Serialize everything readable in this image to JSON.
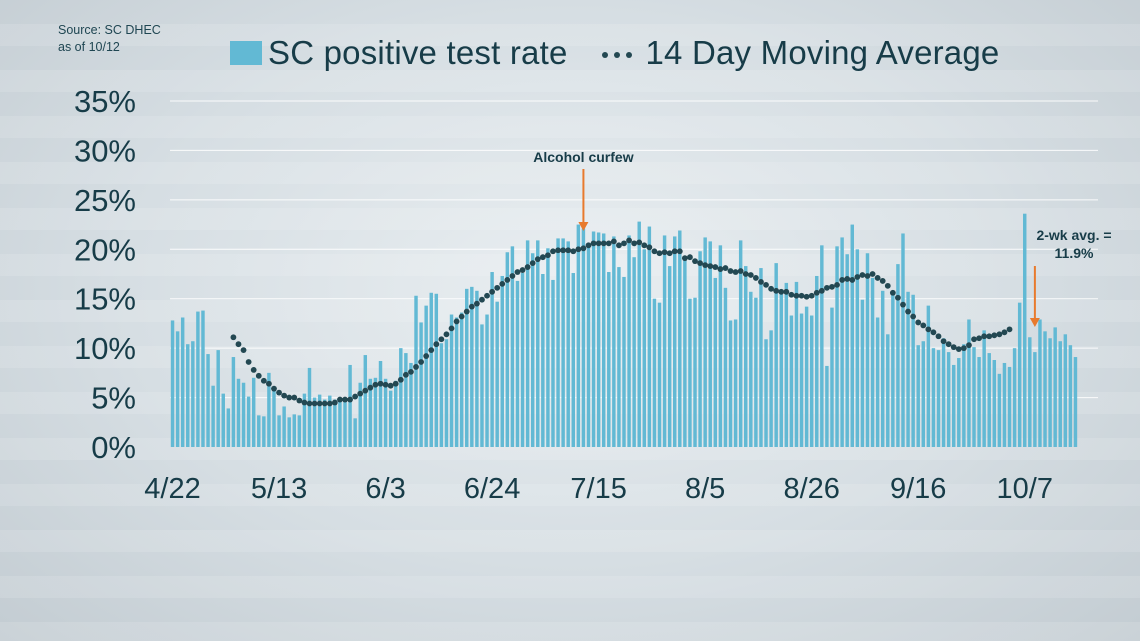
{
  "source": {
    "line1": "Source: SC DHEC",
    "line2": "as of 10/12"
  },
  "chart_data": {
    "type": "bar",
    "start_date": "4/22",
    "x_tick_labels": [
      "4/22",
      "5/13",
      "6/3",
      "6/24",
      "7/15",
      "8/5",
      "8/26",
      "9/16",
      "10/7"
    ],
    "y_tick_labels": [
      "0%",
      "5%",
      "10%",
      "15%",
      "20%",
      "25%",
      "30%",
      "35%"
    ],
    "ylim": [
      0,
      35
    ],
    "grid": true,
    "legend_position": "top",
    "series": [
      {
        "name": "SC positive test rate",
        "color": "#62b9d4",
        "values": [
          12.8,
          11.7,
          13.1,
          10.4,
          10.7,
          13.7,
          13.8,
          9.4,
          6.2,
          9.8,
          5.4,
          3.9,
          9.1,
          6.9,
          6.5,
          5.1,
          7.0,
          3.2,
          3.1,
          7.5,
          5.8,
          3.2,
          4.1,
          3.0,
          3.3,
          3.2,
          5.4,
          8.0,
          5.0,
          5.3,
          4.8,
          5.2,
          4.8,
          5.0,
          4.8,
          8.3,
          2.9,
          6.5,
          9.3,
          6.9,
          7.0,
          8.7,
          6.9,
          5.7,
          6.7,
          10.0,
          9.5,
          8.5,
          15.3,
          12.6,
          14.3,
          15.6,
          15.5,
          10.5,
          10.9,
          13.4,
          13.1,
          13.6,
          16.0,
          16.2,
          15.8,
          12.4,
          13.4,
          17.7,
          14.7,
          17.3,
          19.7,
          20.3,
          16.8,
          17.6,
          20.9,
          19.6,
          20.9,
          17.5,
          20.1,
          16.9,
          21.1,
          21.1,
          20.8,
          17.6,
          22.5,
          22.1,
          20.5,
          21.8,
          21.7,
          21.6,
          17.7,
          21.3,
          18.2,
          17.2,
          21.4,
          19.2,
          22.8,
          20.0,
          22.3,
          15.0,
          14.6,
          21.4,
          18.3,
          21.3,
          21.9,
          19.0,
          15.0,
          15.1,
          19.8,
          21.2,
          20.8,
          17.1,
          20.4,
          16.1,
          12.8,
          12.9,
          20.9,
          18.3,
          15.7,
          15.1,
          18.1,
          10.9,
          11.8,
          18.6,
          15.8,
          16.6,
          13.3,
          16.7,
          13.5,
          14.2,
          13.3,
          17.3,
          20.4,
          8.2,
          14.1,
          20.3,
          21.2,
          19.5,
          22.5,
          20.0,
          14.9,
          19.6,
          17.1,
          13.1,
          15.8,
          11.4,
          15.4,
          18.5,
          21.6,
          15.7,
          15.4,
          10.3,
          10.7,
          14.3,
          10.0,
          9.8,
          11.0,
          9.6,
          8.3,
          9.0,
          10.4,
          12.9,
          10.1,
          9.1,
          11.8,
          9.5,
          8.8,
          7.4,
          8.5,
          8.1,
          10.0,
          14.6,
          23.6,
          11.1,
          9.6,
          12.9,
          11.7,
          11.0,
          12.1,
          10.7,
          11.4,
          10.3,
          9.1
        ]
      },
      {
        "name": "14 Day Moving Average",
        "style": "dotted",
        "color": "#234852",
        "values": [
          null,
          null,
          null,
          null,
          null,
          null,
          null,
          null,
          null,
          null,
          null,
          null,
          11.1,
          10.4,
          9.8,
          8.6,
          7.8,
          7.2,
          6.7,
          6.4,
          5.9,
          5.5,
          5.2,
          5.0,
          5.0,
          4.7,
          4.5,
          4.4,
          4.4,
          4.4,
          4.4,
          4.4,
          4.5,
          4.8,
          4.8,
          4.8,
          5.1,
          5.4,
          5.7,
          6.0,
          6.3,
          6.4,
          6.3,
          6.2,
          6.4,
          6.8,
          7.3,
          7.6,
          8.1,
          8.6,
          9.2,
          9.8,
          10.4,
          10.9,
          11.4,
          12.0,
          12.7,
          13.2,
          13.7,
          14.2,
          14.5,
          14.9,
          15.3,
          15.7,
          16.1,
          16.5,
          16.9,
          17.3,
          17.7,
          17.9,
          18.2,
          18.6,
          19.0,
          19.2,
          19.4,
          19.8,
          19.9,
          19.9,
          19.9,
          19.8,
          20.0,
          20.1,
          20.4,
          20.6,
          20.6,
          20.6,
          20.6,
          20.8,
          20.4,
          20.6,
          20.9,
          20.6,
          20.7,
          20.4,
          20.2,
          19.8,
          19.6,
          19.7,
          19.6,
          19.8,
          19.8,
          19.1,
          19.2,
          18.8,
          18.6,
          18.4,
          18.3,
          18.2,
          18.0,
          18.1,
          17.8,
          17.7,
          17.8,
          17.5,
          17.4,
          17.1,
          16.7,
          16.4,
          16.0,
          15.8,
          15.7,
          15.7,
          15.4,
          15.3,
          15.3,
          15.2,
          15.3,
          15.6,
          15.8,
          16.1,
          16.2,
          16.4,
          16.9,
          17.0,
          16.9,
          17.2,
          17.4,
          17.3,
          17.5,
          17.1,
          16.8,
          16.3,
          15.6,
          15.1,
          14.4,
          13.7,
          13.2,
          12.6,
          12.3,
          11.9,
          11.6,
          11.2,
          10.7,
          10.4,
          10.1,
          9.9,
          10.0,
          10.3,
          10.9,
          11.0,
          11.2,
          11.2,
          11.3,
          11.4,
          11.6,
          11.9
        ]
      }
    ],
    "annotations": [
      {
        "text": "Alcohol curfew",
        "date": "7/12",
        "color": "#e87a2d"
      },
      {
        "line1": "2-wk avg. =",
        "line2": "11.9%",
        "date": "10/9",
        "color": "#e87a2d"
      }
    ]
  }
}
